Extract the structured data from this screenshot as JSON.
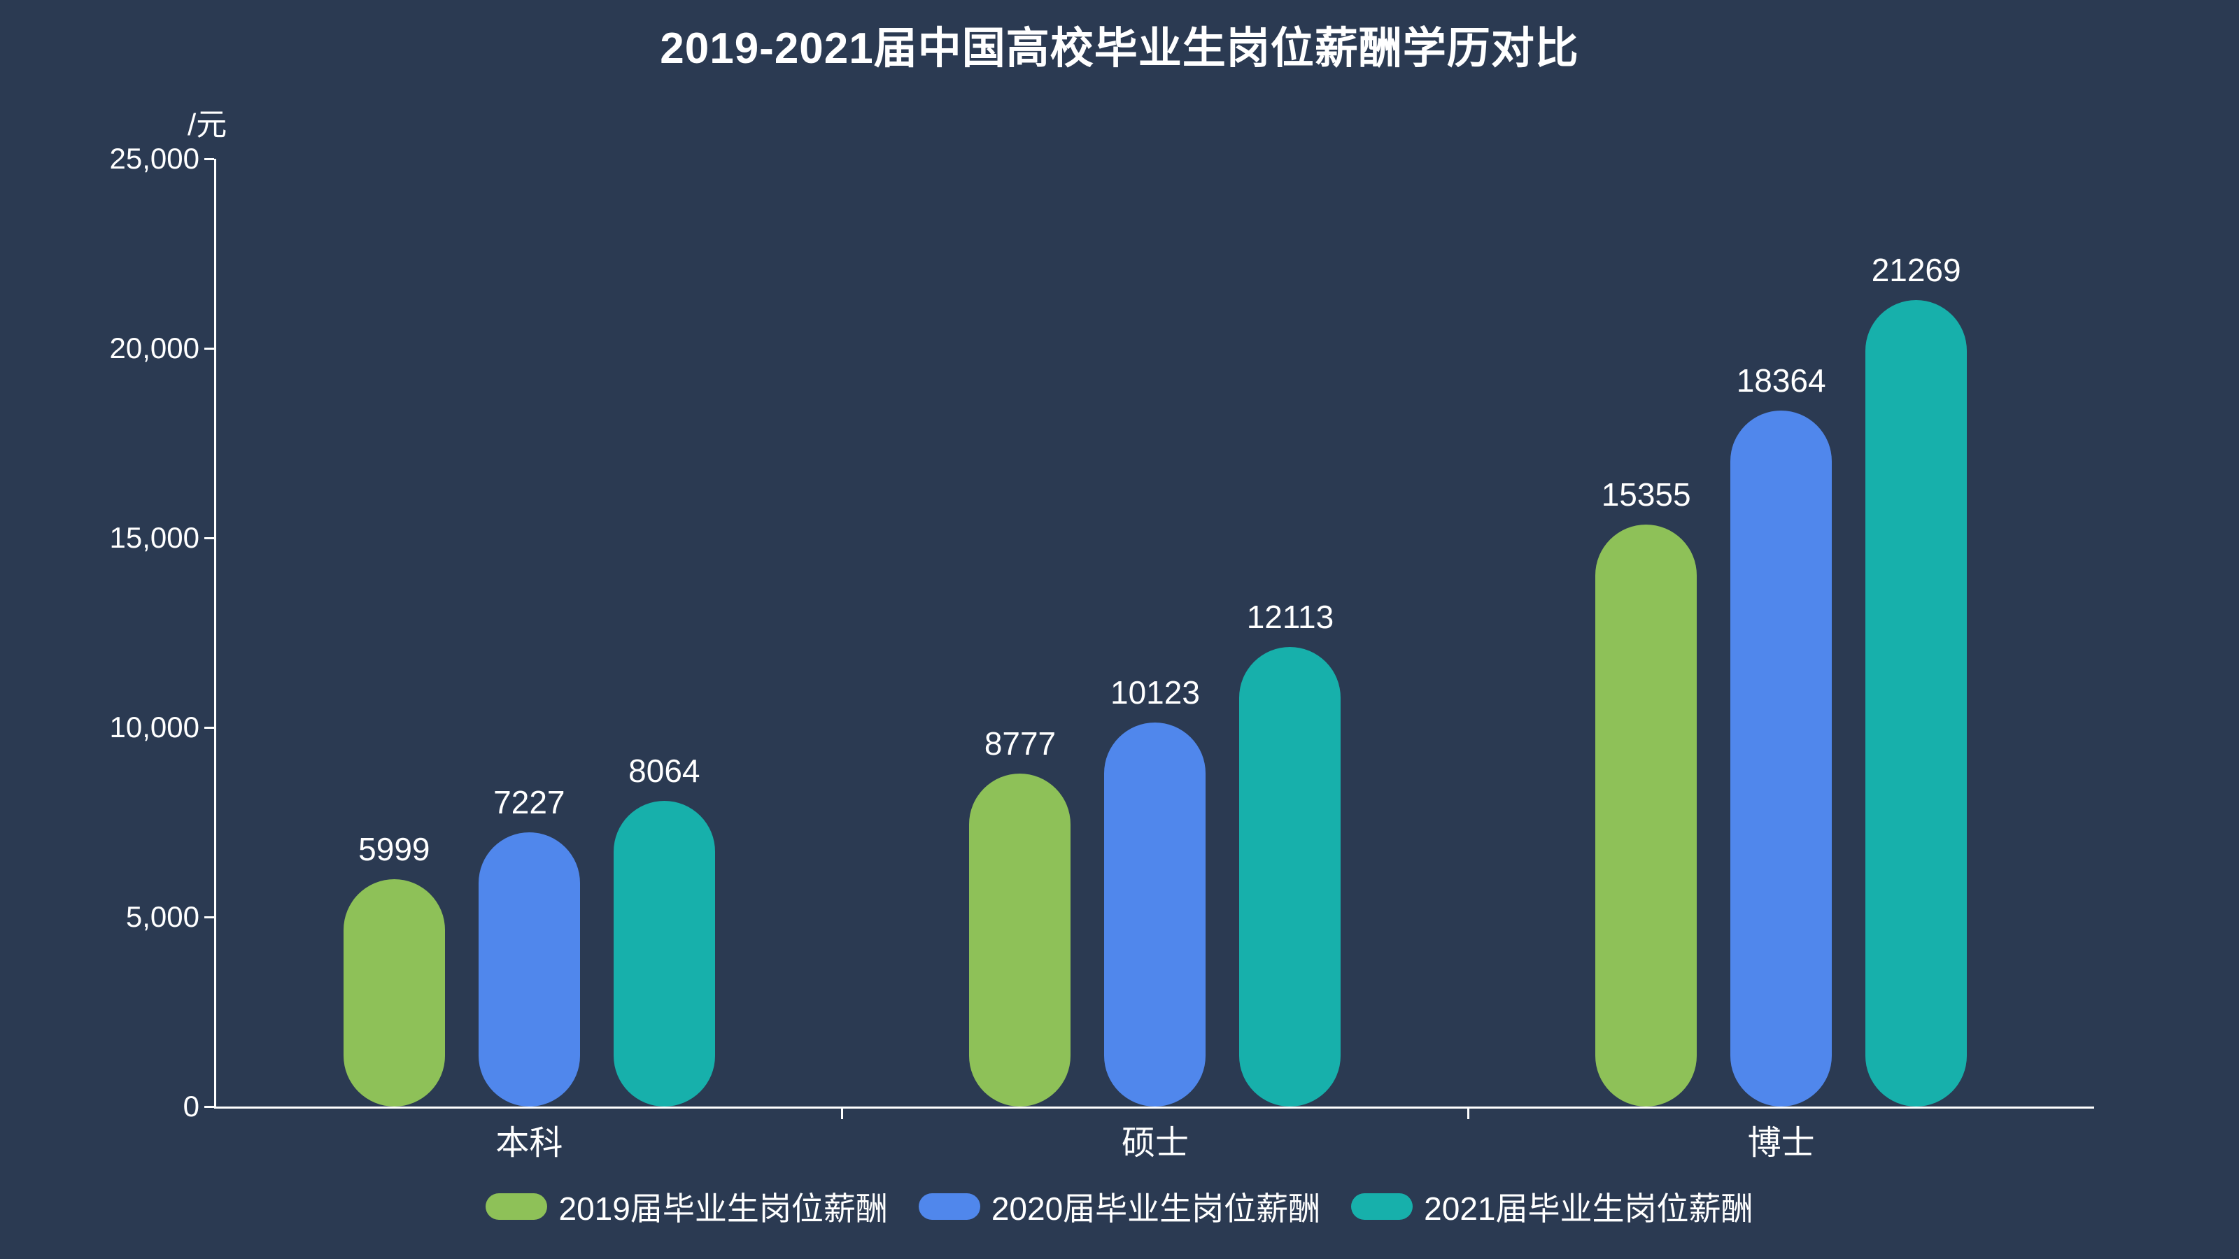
{
  "page": {
    "background": "#2B3A52",
    "text_color": "#FFFFFF",
    "axis_color": "#FFFFFF"
  },
  "chart_data": {
    "type": "bar",
    "title": "2019-2021届中国高校毕业生岗位薪酬学历对比",
    "unit_label": "/元",
    "categories": [
      "本科",
      "硕士",
      "博士"
    ],
    "series": [
      {
        "name": "2019届毕业生岗位薪酬",
        "color": "#8EC158",
        "values": [
          5999,
          8777,
          15355
        ]
      },
      {
        "name": "2020届毕业生岗位薪酬",
        "color": "#5087EC",
        "values": [
          7227,
          10123,
          18364
        ]
      },
      {
        "name": "2021届毕业生岗位薪酬",
        "color": "#17B0AB",
        "values": [
          8064,
          12113,
          21269
        ]
      }
    ],
    "ylim": [
      0,
      25000
    ],
    "yticks": [
      {
        "label": "0",
        "value": 0
      },
      {
        "label": "5,000",
        "value": 5000
      },
      {
        "label": "10,000",
        "value": 10000
      },
      {
        "label": "15,000",
        "value": 15000
      },
      {
        "label": "20,000",
        "value": 20000
      },
      {
        "label": "25,000",
        "value": 25000
      }
    ],
    "grid": false,
    "legend_position": "bottom"
  }
}
